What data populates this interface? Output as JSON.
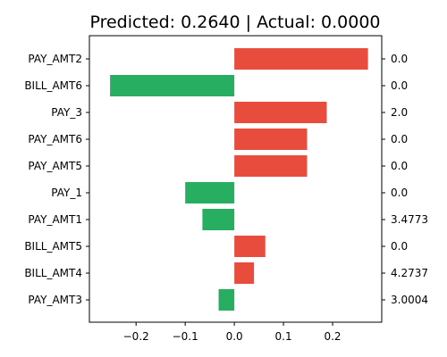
{
  "chart_data": {
    "type": "bar",
    "orientation": "horizontal",
    "title": "Predicted: 0.2640 | Actual: 0.0000",
    "xlabel": "",
    "ylabel": "",
    "categories": [
      "PAY_AMT2",
      "BILL_AMT6",
      "PAY_3",
      "PAY_AMT6",
      "PAY_AMT5",
      "PAY_1",
      "PAY_AMT1",
      "BILL_AMT5",
      "BILL_AMT4",
      "PAY_AMT3"
    ],
    "values": [
      0.272,
      -0.253,
      0.188,
      0.148,
      0.148,
      -0.1,
      -0.065,
      0.063,
      0.04,
      -0.032
    ],
    "feature_values": [
      "0.0",
      "0.0",
      "2.0",
      "0.0",
      "0.0",
      "0.0",
      "3.4773",
      "0.0",
      "4.2737",
      "3.0004"
    ],
    "xlim": [
      -0.295,
      0.3
    ],
    "xticks": [
      -0.2,
      -0.1,
      0.0,
      0.1,
      0.2
    ],
    "xtick_labels": [
      "−0.2",
      "−0.1",
      "0.0",
      "0.1",
      "0.2"
    ],
    "grid": false,
    "legend": "none",
    "colors": {
      "positive": "#e74c3c",
      "negative": "#27ae60"
    }
  }
}
